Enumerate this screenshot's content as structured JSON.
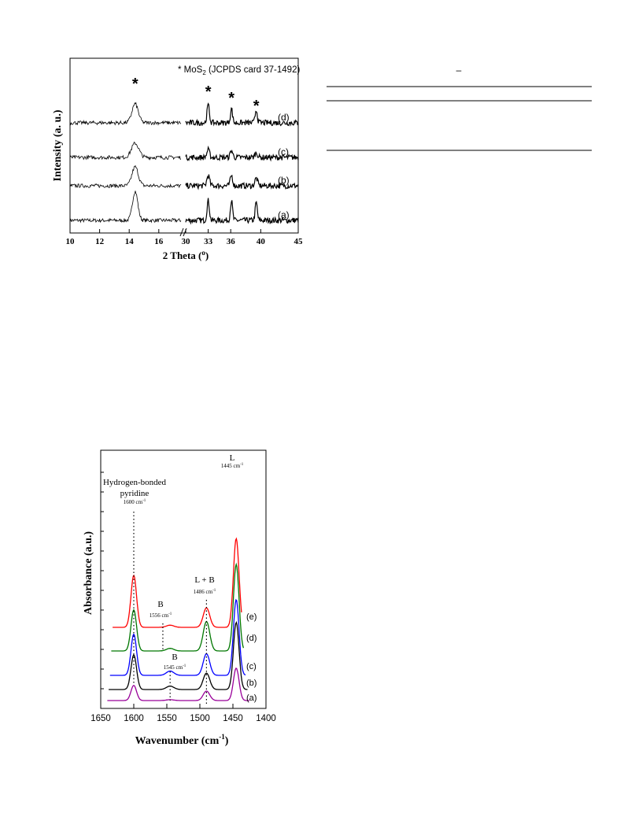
{
  "chart_data": [
    {
      "type": "line",
      "xlabel": "2 Theta (",
      "xlabel_unit": "o",
      "xlabel_close": ")",
      "ylabel": "Intensity (a. u.)",
      "annotation": {
        "prefix": "* MoS",
        "sub": "2",
        "suffix": " (JCPDS card 37-1492)"
      },
      "x_segments": [
        {
          "range": [
            10,
            17.5
          ],
          "ticks": [
            "10",
            "12",
            "14",
            "16"
          ]
        },
        {
          "range": [
            30,
            45
          ],
          "ticks": [
            "30",
            "33",
            "36",
            "40",
            "45"
          ]
        }
      ],
      "peak_markers": [
        {
          "x": 14.4,
          "label": "*"
        },
        {
          "x": 33.0,
          "label": "*"
        },
        {
          "x": 36.1,
          "label": "*"
        },
        {
          "x": 39.4,
          "label": "*"
        }
      ],
      "series": [
        {
          "name": "(a)",
          "offset": 0,
          "peaks": [
            [
              14.4,
              0.62,
              0.25
            ],
            [
              33.0,
              0.42,
              0.22
            ],
            [
              36.1,
              0.42,
              0.2
            ],
            [
              39.4,
              0.38,
              0.2
            ]
          ]
        },
        {
          "name": "(b)",
          "offset": 1,
          "peaks": [
            [
              14.4,
              0.4,
              0.3
            ],
            [
              33.0,
              0.22,
              0.25
            ],
            [
              36.1,
              0.22,
              0.22
            ],
            [
              39.4,
              0.16,
              0.25
            ]
          ]
        },
        {
          "name": "(c)",
          "offset": 2,
          "peaks": [
            [
              14.4,
              0.3,
              0.35
            ],
            [
              33.0,
              0.16,
              0.25
            ],
            [
              36.1,
              0.15,
              0.22
            ],
            [
              39.4,
              0.1,
              0.25
            ]
          ]
        },
        {
          "name": "(d)",
          "offset": 3,
          "peaks": [
            [
              14.4,
              0.4,
              0.3
            ],
            [
              33.0,
              0.38,
              0.22
            ],
            [
              36.1,
              0.3,
              0.2
            ],
            [
              39.4,
              0.28,
              0.2
            ]
          ]
        }
      ]
    },
    {
      "type": "line",
      "xlabel": "Wavenumber (cm",
      "xlabel_sup": "-1",
      "xlabel_close": ")",
      "ylabel": "Absorbance (a.u.)",
      "xlim": [
        1650,
        1400
      ],
      "xticks": [
        "1650",
        "1600",
        "1550",
        "1500",
        "1450",
        "1400"
      ],
      "annotations": [
        {
          "lines": [
            "Hydrogen-bonded",
            "pyridine"
          ],
          "sub": "1600 cm",
          "x": 1600
        },
        {
          "lines": [
            "L"
          ],
          "sub": "1445 cm",
          "x": 1445
        },
        {
          "lines": [
            "L + B"
          ],
          "sub": "1486 cm",
          "x": 1490
        },
        {
          "lines": [
            "B"
          ],
          "sub": "1556 cm",
          "x": 1556
        },
        {
          "lines": [
            "B"
          ],
          "sub": "1545 cm",
          "x": 1545
        }
      ],
      "series": [
        {
          "name": "(a)",
          "color": "#990099",
          "baseline": 0.0,
          "peaks": [
            [
              1600,
              0.35
            ],
            [
              1545,
              0.02
            ],
            [
              1490,
              0.22
            ],
            [
              1445,
              0.75
            ]
          ]
        },
        {
          "name": "(b)",
          "color": "#000000",
          "baseline": 0.7,
          "peaks": [
            [
              1600,
              0.8
            ],
            [
              1545,
              0.08
            ],
            [
              1490,
              0.38
            ],
            [
              1445,
              1.55
            ]
          ]
        },
        {
          "name": "(c)",
          "color": "#0000ff",
          "baseline": 1.1,
          "peaks": [
            [
              1600,
              0.95
            ],
            [
              1545,
              0.1
            ],
            [
              1490,
              0.5
            ],
            [
              1445,
              1.75
            ]
          ]
        },
        {
          "name": "(d)",
          "color": "#007700",
          "baseline": 1.55,
          "peaks": [
            [
              1600,
              0.95
            ],
            [
              1545,
              0.06
            ],
            [
              1490,
              0.68
            ],
            [
              1445,
              2.0
            ]
          ]
        },
        {
          "name": "(e)",
          "color": "#ff0000",
          "baseline": 2.0,
          "peaks": [
            [
              1600,
              1.2
            ],
            [
              1545,
              0.05
            ],
            [
              1490,
              0.45
            ],
            [
              1445,
              2.05
            ]
          ]
        }
      ]
    }
  ],
  "table": {
    "dash": "–"
  }
}
